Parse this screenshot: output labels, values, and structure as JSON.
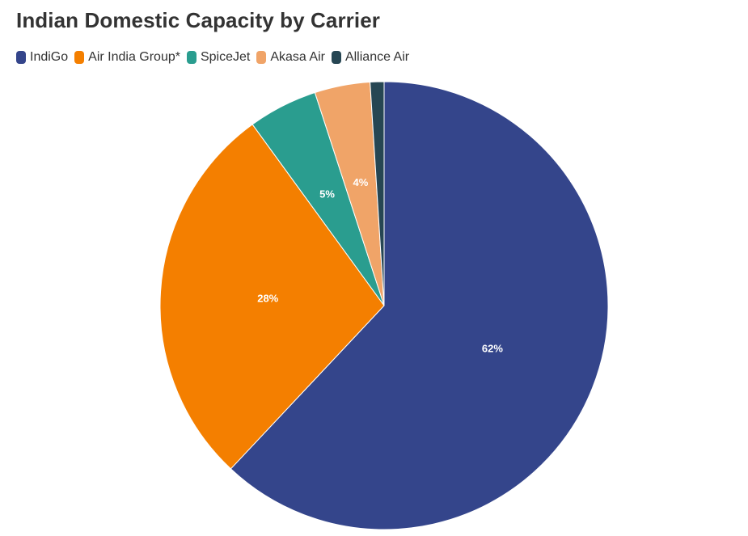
{
  "chart_data": {
    "type": "pie",
    "title": "Indian Domestic Capacity by Carrier",
    "legend_position": "top-left",
    "categories": [
      "IndiGo",
      "Air India Group*",
      "SpiceJet",
      "Akasa Air",
      "Alliance Air"
    ],
    "values": [
      62,
      28,
      5,
      4,
      1
    ],
    "labels": [
      "62%",
      "28%",
      "5%",
      "4%",
      ""
    ],
    "colors": [
      "#34458b",
      "#f47f00",
      "#2a9d8f",
      "#f0a468",
      "#264653"
    ]
  }
}
